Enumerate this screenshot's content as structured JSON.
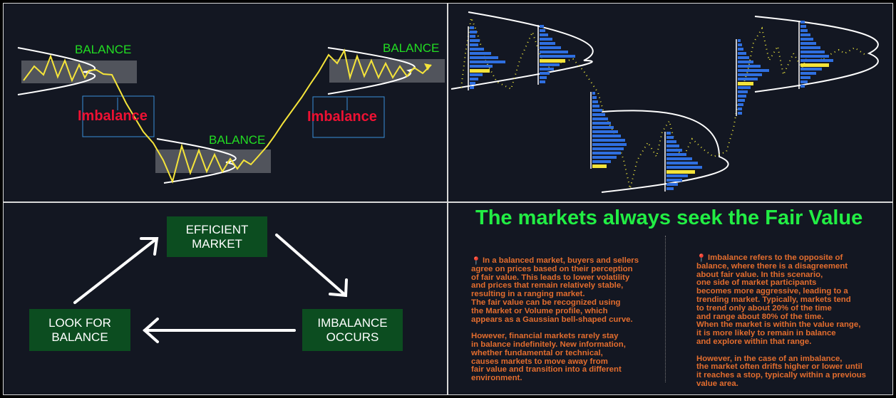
{
  "panel1": {
    "labels": {
      "balance_1": "BALANCE",
      "balance_2": "BALANCE",
      "balance_3": "BALANCE",
      "imbalance_1": "Imbalance",
      "imbalance_2": "Imbalance"
    }
  },
  "panel3": {
    "efficient_market": [
      "EFFICIENT",
      "MARKET"
    ],
    "imbalance_occurs": [
      "IMBALANCE",
      "OCCURS"
    ],
    "look_for_balance": [
      "LOOK FOR",
      "BALANCE"
    ]
  },
  "panel4": {
    "title": "The markets always seek the Fair Value",
    "left_paragraph": "In a balanced market, buyers and sellers\nagree on prices based on their perception\nof fair value. This leads to lower volatility\nand prices that remain relatively stable,\nresulting in a ranging market.\nThe fair value can be recognized using\nthe Market or Volume profile, which\nappears as a Gaussian bell-shaped curve.\n\nHowever, financial markets rarely stay\nin balance indefinitely. New information,\nwhether fundamental or technical,\ncauses markets to move away from\nfair value and transition into a different\nenvironment.",
    "right_paragraph": "Imbalance refers to the opposite of\nbalance, where there is a disagreement\nabout fair value.  In this scenario,\none side of market participants\n becomes more aggressive, leading to a\ntrending market. Typically, markets tend\nto trend only about 20% of the time\nand range about 80% of the time.\nWhen the market is  within the value range,\nit is more likely to remain in balance\nand explore within that range.\n\n However, in the case of an imbalance,\nthe market often drifts higher or lower until\nit reaches a stop, typically within a previous\nvalue area."
  },
  "colors": {
    "panel_bg": "#131722",
    "price_line": "#f5e43a",
    "balance_green": "#22dd22",
    "imbalance_red": "#ee1133",
    "profile_blue": "#2f6fe0",
    "poc_yellow": "#f5e43a",
    "box_green": "#0c4d20",
    "text_orange": "#e36d2e"
  },
  "icons": {
    "pin": "pushpin-icon"
  }
}
